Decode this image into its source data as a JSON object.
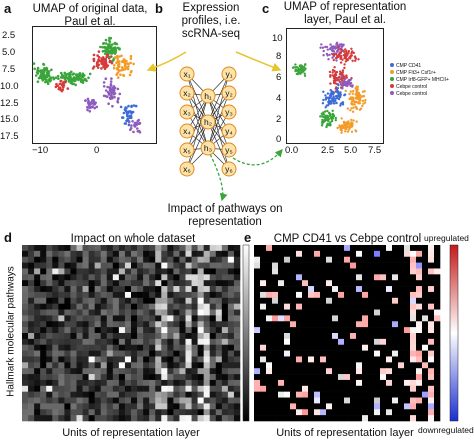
{
  "panels": {
    "a": {
      "label": "a",
      "title_line1": "UMAP of original data,",
      "title_line2": "Paul et al.",
      "yticks": [
        "2.5",
        "5.0",
        "7.5",
        "10.0",
        "12.5",
        "15.0",
        "17.5"
      ],
      "xticks": [
        "−10",
        "0"
      ]
    },
    "b": {
      "label": "b",
      "title_line1": "Expression",
      "title_line2": "profiles, i.e.",
      "title_line3": "scRNA-seq",
      "inputs": [
        "x₁",
        "x₂",
        "x₃",
        "x₄",
        "x₅",
        "x₆"
      ],
      "hidden": [
        "h₁",
        "h₂",
        "h₃"
      ],
      "outputs": [
        "y₁",
        "y₂",
        "y₃",
        "y₄",
        "y₅",
        "y₆"
      ],
      "caption_line1": "Impact of pathways on",
      "caption_line2": "representation"
    },
    "c": {
      "label": "c",
      "title_line1": "UMAP of representation",
      "title_line2": "layer, Paul et al.",
      "yticks": [
        "10",
        "8",
        "6",
        "4",
        "2",
        "0"
      ],
      "xticks": [
        "0.0",
        "2.5",
        "5.0",
        "7.5"
      ],
      "legend": [
        {
          "text": "CMP CD41",
          "color": "#3d6bd6"
        },
        {
          "text": "CMP Flt3+ Csf1r+",
          "color": "#f39c2a"
        },
        {
          "text": "CMP Irf8-GFP+ MHCII+",
          "color": "#3aa53a"
        },
        {
          "text": "Cebpe control",
          "color": "#d63a3a"
        },
        {
          "text": "Cebpe control",
          "color": "#8e5bbf"
        }
      ]
    },
    "d": {
      "label": "d",
      "title": "Impact on whole dataset",
      "ylabel": "Hallmark molecular pathways",
      "xlabel": "Units of representation layer"
    },
    "e": {
      "label": "e",
      "title": "CMP CD41 vs Cebpe control",
      "xlabel": "Units of representation layer",
      "cbar_top": "upregulated",
      "cbar_bottom": "downregulated"
    }
  }
}
